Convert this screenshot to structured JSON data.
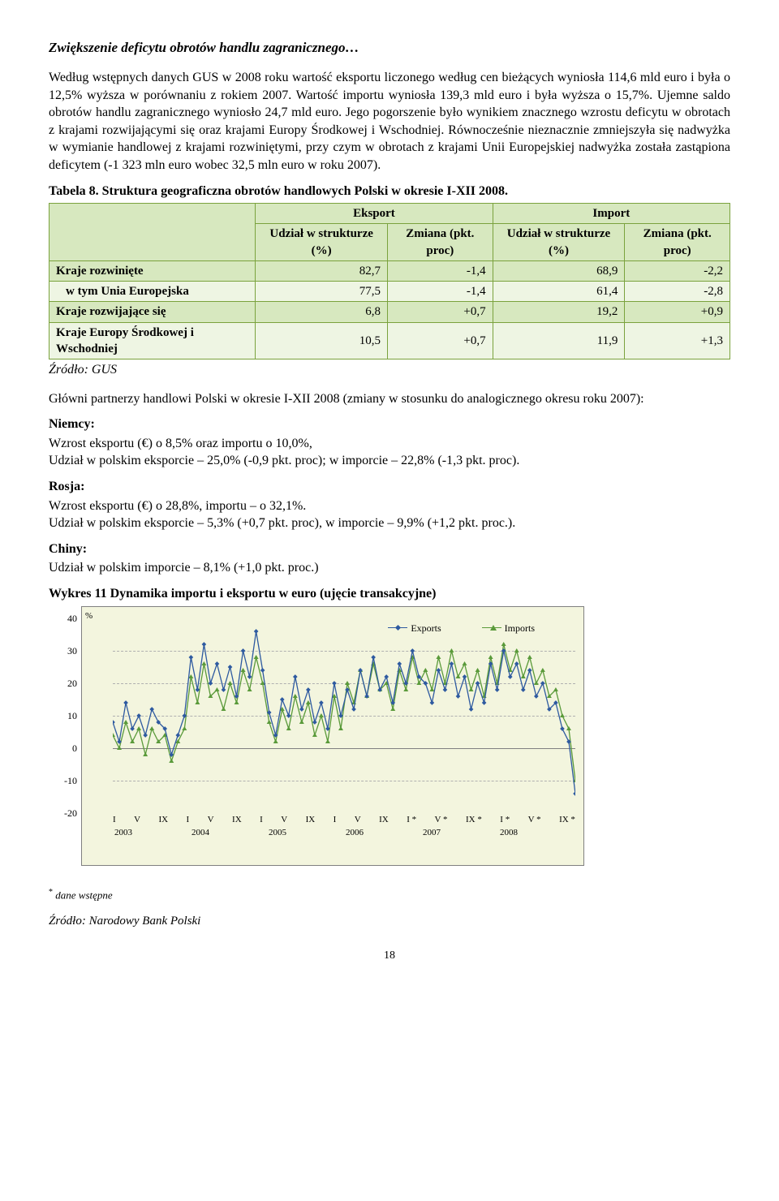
{
  "heading": "Zwiększenie deficytu obrotów handlu zagranicznego…",
  "para1": "Według wstępnych danych GUS w 2008 roku wartość eksportu liczonego według cen bieżących wyniosła 114,6 mld euro i była o 12,5% wyższa w porównaniu z rokiem 2007. Wartość importu wyniosła 139,3 mld euro i była wyższa o 15,7%. Ujemne saldo obrotów handlu zagranicznego wyniosło 24,7 mld euro. Jego pogorszenie było wynikiem znacznego wzrostu deficytu w obrotach z krajami rozwijającymi się oraz krajami Europy Środkowej i Wschodniej. Równocześnie nieznacznie zmniejszyła się nadwyżka w wymianie handlowej z krajami rozwiniętymi, przy czym w obrotach z krajami Unii Europejskiej nadwyżka została zastąpiona deficytem (-1 323 mln euro wobec 32,5 mln euro w roku 2007).",
  "table_title": "Tabela 8. Struktura geograficzna obrotów handlowych Polski w okresie I-XII 2008.",
  "table": {
    "col_group1": "Eksport",
    "col_group2": "Import",
    "col_a": "Udział w strukturze (%)",
    "col_b": "Zmiana (pkt. proc)",
    "rows": [
      {
        "label": "Kraje rozwinięte",
        "sub": false,
        "v": [
          "82,7",
          "-1,4",
          "68,9",
          "-2,2"
        ],
        "cls": "row-green"
      },
      {
        "label": "w tym Unia Europejska",
        "sub": true,
        "v": [
          "77,5",
          "-1,4",
          "61,4",
          "-2,8"
        ],
        "cls": "row-pale"
      },
      {
        "label": "Kraje rozwijające się",
        "sub": false,
        "v": [
          "6,8",
          "+0,7",
          "19,2",
          "+0,9"
        ],
        "cls": "row-green"
      },
      {
        "label": "Kraje Europy Środkowej i Wschodniej",
        "sub": false,
        "v": [
          "10,5",
          "+0,7",
          "11,9",
          "+1,3"
        ],
        "cls": "row-pale"
      }
    ]
  },
  "source_gus": "Źródło: GUS",
  "para2": "Główni partnerzy handlowi Polski w okresie I-XII 2008 (zmiany w stosunku do analogicznego okresu roku 2007):",
  "niemcy": "Niemcy:",
  "niemcy1": "Wzrost eksportu (€) o 8,5% oraz importu o 10,0%,",
  "niemcy2": "Udział w polskim eksporcie – 25,0% (-0,9 pkt. proc); w imporcie – 22,8% (-1,3 pkt. proc).",
  "rosja": "Rosja:",
  "rosja1": "Wzrost eksportu (€) o 28,8%, importu – o 32,1%.",
  "rosja2": "Udział w polskim eksporcie – 5,3% (+0,7 pkt. proc), w imporcie – 9,9% (+1,2 pkt. proc.).",
  "chiny": "Chiny:",
  "chiny1": "Udział w polskim imporcie – 8,1% (+1,0 pkt. proc.)",
  "chart_title": "Wykres 11 Dynamika importu i eksportu w euro (ujęcie transakcyjne)",
  "chart": {
    "y_unit": "%",
    "ylim": [
      -20,
      40
    ],
    "yticks": [
      40,
      30,
      20,
      10,
      0,
      -10,
      -20
    ],
    "legend_exports": "Exports",
    "legend_imports": "Imports",
    "color_exports": "#2e5aa0",
    "color_imports": "#5a9a3a",
    "bg": "#f3f5de",
    "grid_color": "#b0b0b0",
    "x_months": [
      "I",
      "V",
      "IX",
      "I",
      "V",
      "IX",
      "I",
      "V",
      "IX",
      "I",
      "V",
      "IX",
      "I *",
      "V *",
      "IX *",
      "I *",
      "V *",
      "IX *"
    ],
    "x_years": [
      "2003",
      "2004",
      "2005",
      "2006",
      "2007",
      "2008"
    ],
    "exports": [
      8,
      2,
      14,
      6,
      10,
      4,
      12,
      8,
      6,
      -2,
      4,
      10,
      28,
      18,
      32,
      20,
      26,
      18,
      25,
      16,
      30,
      22,
      36,
      24,
      11,
      4,
      15,
      10,
      22,
      12,
      18,
      8,
      14,
      6,
      20,
      10,
      18,
      12,
      24,
      16,
      28,
      18,
      22,
      14,
      26,
      20,
      30,
      22,
      20,
      14,
      24,
      18,
      26,
      16,
      22,
      12,
      20,
      14,
      26,
      18,
      30,
      22,
      26,
      18,
      24,
      16,
      20,
      12,
      14,
      6,
      2,
      -14
    ],
    "imports": [
      4,
      0,
      8,
      2,
      6,
      -2,
      6,
      2,
      4,
      -4,
      2,
      6,
      22,
      14,
      26,
      16,
      18,
      12,
      20,
      14,
      24,
      18,
      28,
      20,
      8,
      2,
      12,
      6,
      16,
      8,
      14,
      4,
      10,
      2,
      16,
      6,
      20,
      14,
      24,
      16,
      26,
      18,
      20,
      12,
      24,
      18,
      28,
      20,
      24,
      18,
      28,
      20,
      30,
      22,
      26,
      18,
      24,
      16,
      28,
      20,
      32,
      24,
      30,
      22,
      28,
      20,
      24,
      16,
      18,
      10,
      6,
      -10
    ]
  },
  "footnote": "dane wstępne",
  "footnote_star": "*",
  "footnote_src": "Źródło: Narodowy Bank Polski",
  "pagenum": "18"
}
